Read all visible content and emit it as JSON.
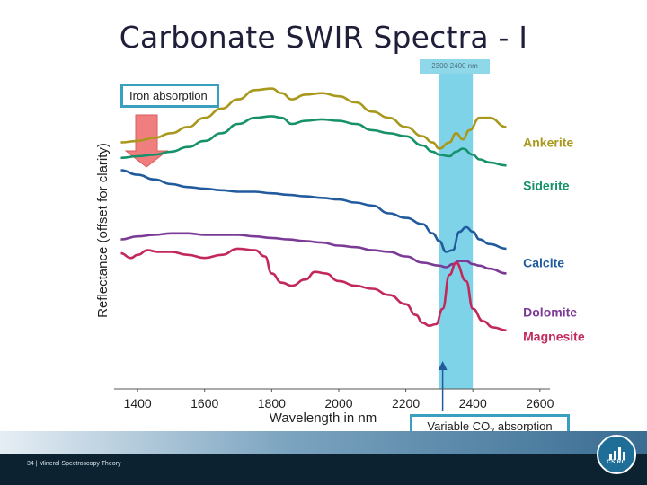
{
  "slide": {
    "title": "Carbonate SWIR Spectra - I",
    "band_label": "2300-2400 nm",
    "iron_callout": "Iron absorption",
    "co3_callout_prefix": "Variable CO",
    "co3_callout_sub": "3",
    "co3_callout_suffix": " absorption",
    "footer_page": "34",
    "footer_sep": "|",
    "footer_text": "Mineral Spectroscopy Theory",
    "logo_text": "CSIRO"
  },
  "colors": {
    "band": "#7fd3e8",
    "arrow": "#f07e7e",
    "arrow_stroke": "#d85d5d",
    "Ankerite": "#a8981c",
    "Siderite": "#16916a",
    "Calcite": "#215b9e",
    "Dolomite": "#7a3a96",
    "Magnesite": "#c2285a",
    "axis": "#555555"
  },
  "chart_data": {
    "type": "line",
    "title": "",
    "xlabel": "Wavelength in nm",
    "ylabel": "Reflectance (offset for clarity)",
    "xlim": [
      1330,
      2630
    ],
    "ylim": [
      0,
      100
    ],
    "xticks": [
      1400,
      1600,
      1800,
      2000,
      2200,
      2400,
      2600
    ],
    "highlight_band": [
      2300,
      2400
    ],
    "yticks_shown": false,
    "series": [
      {
        "name": "Ankerite",
        "x": [
          1350,
          1400,
          1450,
          1500,
          1550,
          1600,
          1650,
          1700,
          1750,
          1800,
          1830,
          1860,
          1900,
          1950,
          2000,
          2050,
          2100,
          2150,
          2200,
          2250,
          2280,
          2300,
          2330,
          2350,
          2370,
          2390,
          2420,
          2450,
          2500
        ],
        "y": [
          80,
          80.5,
          81.5,
          83,
          85,
          88,
          91,
          94,
          97,
          97.5,
          96,
          94,
          95.5,
          96,
          95,
          93,
          90,
          88,
          85,
          82,
          80,
          78,
          80,
          83,
          81,
          84,
          88,
          88,
          85
        ]
      },
      {
        "name": "Siderite",
        "x": [
          1350,
          1400,
          1450,
          1500,
          1550,
          1600,
          1650,
          1700,
          1750,
          1800,
          1830,
          1860,
          1900,
          1950,
          2000,
          2050,
          2100,
          2150,
          2200,
          2250,
          2280,
          2300,
          2330,
          2350,
          2370,
          2400,
          2420,
          2450,
          2500
        ],
        "y": [
          75,
          75.5,
          76,
          77,
          78.5,
          80.5,
          83,
          86,
          88,
          88.5,
          88,
          86,
          87,
          87.5,
          87,
          86,
          84,
          83,
          82,
          79,
          77,
          76,
          75.5,
          77,
          78,
          76,
          74.5,
          73.5,
          72.5
        ]
      },
      {
        "name": "Calcite",
        "x": [
          1350,
          1400,
          1450,
          1500,
          1550,
          1600,
          1650,
          1700,
          1750,
          1800,
          1850,
          1900,
          1950,
          2000,
          2050,
          2100,
          2150,
          2200,
          2250,
          2280,
          2300,
          2320,
          2340,
          2360,
          2380,
          2400,
          2420,
          2450,
          2500
        ],
        "y": [
          71,
          69.5,
          68,
          66.5,
          65.5,
          65,
          64.5,
          64,
          64,
          63.5,
          63,
          62.5,
          62,
          61.5,
          60.5,
          59.5,
          57,
          55.5,
          53.5,
          50.5,
          48,
          44.5,
          45,
          51,
          52.5,
          51,
          48.5,
          47,
          45.5
        ]
      },
      {
        "name": "Dolomite",
        "x": [
          1350,
          1400,
          1450,
          1500,
          1550,
          1600,
          1650,
          1700,
          1750,
          1800,
          1850,
          1900,
          1950,
          2000,
          2050,
          2100,
          2150,
          2200,
          2250,
          2300,
          2320,
          2340,
          2360,
          2380,
          2400,
          2420,
          2450,
          2500
        ],
        "y": [
          48.5,
          49.5,
          50,
          50.5,
          50.5,
          50,
          50,
          50,
          49.5,
          49,
          48.5,
          48,
          47.5,
          46.5,
          46,
          45,
          44.5,
          43,
          41,
          40,
          39.5,
          40.5,
          41.5,
          41.5,
          40.5,
          40,
          39,
          37.5
        ]
      },
      {
        "name": "Magnesite",
        "x": [
          1350,
          1380,
          1400,
          1430,
          1460,
          1500,
          1550,
          1600,
          1650,
          1700,
          1750,
          1780,
          1800,
          1830,
          1860,
          1900,
          1930,
          1960,
          2000,
          2050,
          2100,
          2150,
          2200,
          2230,
          2250,
          2270,
          2290,
          2310,
          2330,
          2350,
          2380,
          2400,
          2430,
          2460,
          2500
        ],
        "y": [
          44,
          42.5,
          43.5,
          45,
          44.5,
          44.5,
          43.5,
          42.5,
          43.5,
          45.5,
          45,
          43,
          37.5,
          34.5,
          33.5,
          35.5,
          38,
          37.5,
          35,
          33.5,
          32.5,
          30.5,
          27.5,
          24,
          21.5,
          20.5,
          21,
          26,
          37,
          41,
          35,
          26,
          22,
          20,
          19
        ]
      }
    ],
    "legend_labels": [
      "Ankerite",
      "Siderite",
      "Calcite",
      "Dolomite",
      "Magnesite"
    ]
  }
}
